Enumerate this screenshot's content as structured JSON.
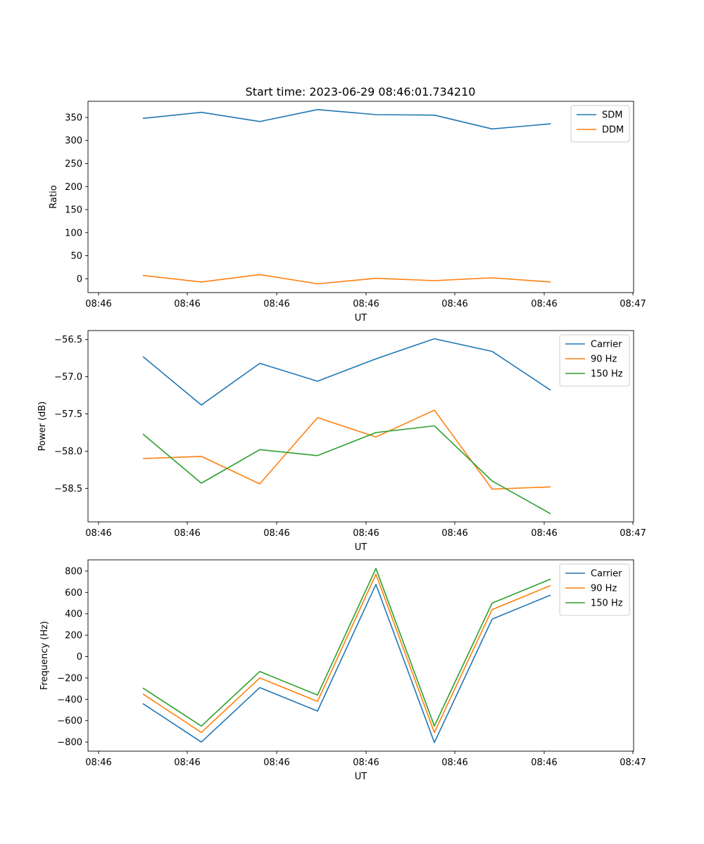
{
  "title": "Start time: 2023-06-29 08:46:01.734210",
  "chart_data": [
    {
      "type": "line",
      "xlabel": "UT",
      "ylabel": "Ratio",
      "xtick_labels": [
        "08:46",
        "08:46",
        "08:46",
        "08:46",
        "08:46",
        "08:46",
        "08:47"
      ],
      "yticks": [
        0,
        50,
        100,
        150,
        200,
        250,
        300,
        350
      ],
      "ylim": [
        -30,
        385
      ],
      "legend_position": "top-right",
      "series": [
        {
          "name": "SDM",
          "color": "#1f77b4",
          "values": [
            348,
            361,
            341,
            367,
            356,
            355,
            325,
            336
          ]
        },
        {
          "name": "DDM",
          "color": "#ff7f0e",
          "values": [
            7,
            -7,
            9,
            -11,
            1,
            -4,
            2,
            -7
          ]
        }
      ]
    },
    {
      "type": "line",
      "xlabel": "UT",
      "ylabel": "Power (dB)",
      "xtick_labels": [
        "08:46",
        "08:46",
        "08:46",
        "08:46",
        "08:46",
        "08:46",
        "08:47"
      ],
      "yticks": [
        -56.5,
        -57.0,
        -57.5,
        -58.0,
        -58.5
      ],
      "ytick_labels": [
        "−56.5",
        "−57.0",
        "−57.5",
        "−58.0",
        "−58.5"
      ],
      "ylim": [
        -58.95,
        -56.38
      ],
      "legend_position": "top-right",
      "series": [
        {
          "name": "Carrier",
          "color": "#1f77b4",
          "values": [
            -56.73,
            -57.38,
            -56.82,
            -57.06,
            -56.76,
            -56.49,
            -56.66,
            -57.18
          ]
        },
        {
          "name": "90 Hz",
          "color": "#ff7f0e",
          "values": [
            -58.1,
            -58.07,
            -58.44,
            -57.55,
            -57.81,
            -57.45,
            -58.51,
            -58.48
          ]
        },
        {
          "name": "150 Hz",
          "color": "#2ca02c",
          "values": [
            -57.77,
            -58.43,
            -57.98,
            -58.06,
            -57.75,
            -57.66,
            -58.4,
            -58.84
          ]
        }
      ]
    },
    {
      "type": "line",
      "xlabel": "UT",
      "ylabel": "Frequency (Hz)",
      "xtick_labels": [
        "08:46",
        "08:46",
        "08:46",
        "08:46",
        "08:46",
        "08:46",
        "08:47"
      ],
      "yticks": [
        800,
        600,
        400,
        200,
        0,
        -200,
        -400,
        -600,
        -800
      ],
      "ytick_labels": [
        "800",
        "600",
        "400",
        "200",
        "0",
        "−200",
        "−400",
        "−600",
        "−800"
      ],
      "ylim": [
        -885,
        905
      ],
      "legend_position": "top-right",
      "series": [
        {
          "name": "Carrier",
          "color": "#1f77b4",
          "values": [
            -440,
            -800,
            -290,
            -510,
            675,
            -805,
            350,
            575
          ]
        },
        {
          "name": "90 Hz",
          "color": "#ff7f0e",
          "values": [
            -350,
            -710,
            -200,
            -420,
            770,
            -710,
            440,
            665
          ]
        },
        {
          "name": "150 Hz",
          "color": "#2ca02c",
          "values": [
            -295,
            -650,
            -140,
            -360,
            825,
            -650,
            500,
            725
          ]
        }
      ]
    }
  ]
}
